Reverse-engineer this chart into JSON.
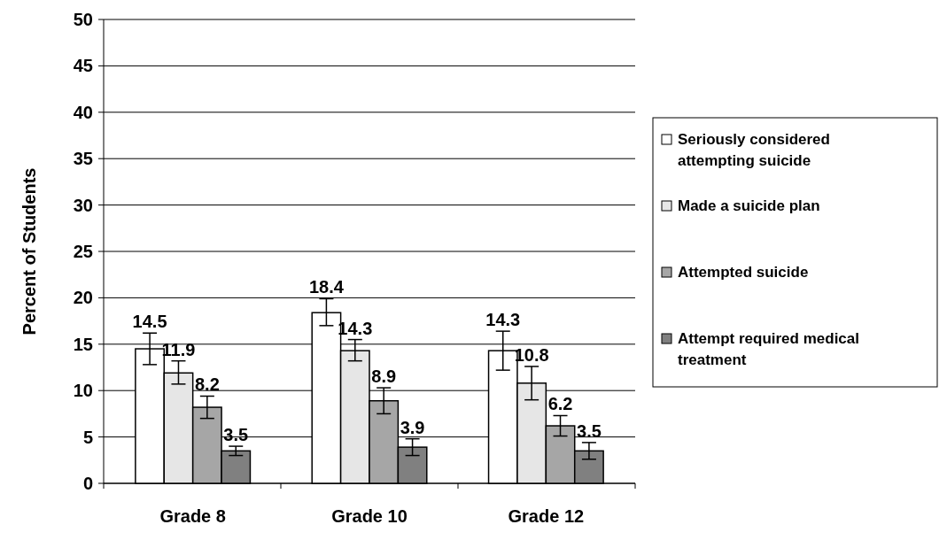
{
  "chart_data": {
    "type": "bar",
    "ylabel": "Percent of Students",
    "categories": [
      "Grade 8",
      "Grade 10",
      "Grade 12"
    ],
    "series": [
      {
        "name": "Seriously considered attempting suicide",
        "color": "#ffffff",
        "values": [
          14.5,
          18.4,
          14.3
        ],
        "errors": [
          [
            12.8,
            16.2
          ],
          [
            17.0,
            19.9
          ],
          [
            12.2,
            16.4
          ]
        ]
      },
      {
        "name": "Made a suicide plan",
        "color": "#e6e6e6",
        "values": [
          11.9,
          14.3,
          10.8
        ],
        "errors": [
          [
            10.7,
            13.2
          ],
          [
            13.2,
            15.5
          ],
          [
            9.0,
            12.6
          ]
        ]
      },
      {
        "name": "Attempted suicide",
        "color": "#a6a6a6",
        "values": [
          8.2,
          8.9,
          6.2
        ],
        "errors": [
          [
            7.0,
            9.4
          ],
          [
            7.5,
            10.3
          ],
          [
            5.1,
            7.3
          ]
        ]
      },
      {
        "name": "Attempt required medical treatment",
        "color": "#808080",
        "values": [
          3.5,
          3.9,
          3.5
        ],
        "errors": [
          [
            3.0,
            4.0
          ],
          [
            3.0,
            4.8
          ],
          [
            2.6,
            4.4
          ]
        ]
      }
    ],
    "ylim": [
      0,
      50
    ],
    "yticks": [
      0,
      5,
      10,
      15,
      20,
      25,
      30,
      35,
      40,
      45,
      50
    ],
    "grid": "y",
    "legend": "right",
    "data_labels": true
  }
}
